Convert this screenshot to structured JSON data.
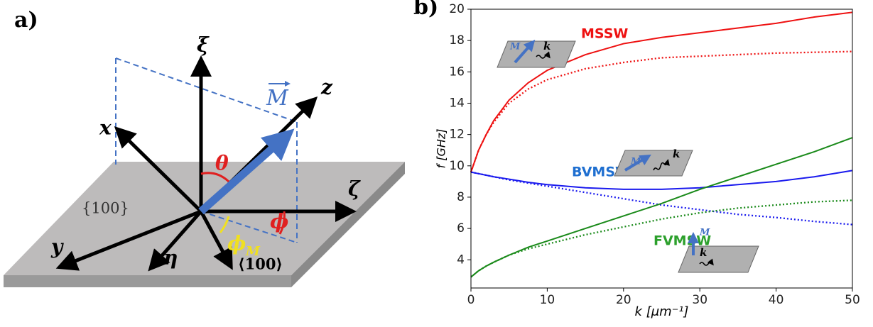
{
  "panel_labels": [
    "a)",
    "b)"
  ],
  "diagram": {
    "xi": "ξ",
    "x": "x",
    "z": "z",
    "M": "M",
    "theta": "θ",
    "zeta": "ζ",
    "plane": "{100}",
    "phi": "ϕ",
    "phi_M": "ϕ",
    "phi_M_sub": "M",
    "y": "y",
    "eta": "η",
    "direction": "⟨100⟩",
    "k": "k"
  },
  "chart_data": {
    "type": "line",
    "x_label": "k [μm⁻¹]",
    "y_label": "f [GHz]",
    "x": [
      0,
      1,
      2,
      3,
      5,
      7.5,
      10,
      15,
      20,
      25,
      30,
      35,
      40,
      45,
      50
    ],
    "series": [
      {
        "color": "#ee1111",
        "style": "solid",
        "values": [
          9.6,
          11,
          12,
          12.9,
          14.2,
          15.3,
          16.1,
          17.1,
          17.8,
          18.2,
          18.5,
          18.8,
          19.1,
          19.5,
          19.8
        ]
      },
      {
        "color": "#ee1111",
        "style": "dotted",
        "values": [
          9.6,
          11,
          12,
          12.8,
          14,
          14.9,
          15.5,
          16.2,
          16.6,
          16.9,
          17.0,
          17.1,
          17.2,
          17.25,
          17.3
        ]
      },
      {
        "color": "#1a1aee",
        "style": "solid",
        "values": [
          9.6,
          9.5,
          9.4,
          9.3,
          9.15,
          8.95,
          8.8,
          8.6,
          8.5,
          8.5,
          8.6,
          8.8,
          9.0,
          9.3,
          9.7
        ]
      },
      {
        "color": "#1a1aee",
        "style": "dotted",
        "values": [
          9.6,
          9.5,
          9.4,
          9.3,
          9.1,
          8.9,
          8.7,
          8.3,
          7.9,
          7.5,
          7.2,
          6.9,
          6.7,
          6.45,
          6.25
        ]
      },
      {
        "color": "#1a8a1a",
        "style": "solid",
        "values": [
          2.9,
          3.3,
          3.6,
          3.85,
          4.3,
          4.8,
          5.2,
          6.0,
          6.8,
          7.6,
          8.5,
          9.3,
          10.1,
          10.9,
          11.8
        ]
      },
      {
        "color": "#1a8a1a",
        "style": "dotted",
        "values": [
          2.9,
          3.3,
          3.6,
          3.85,
          4.3,
          4.7,
          5.0,
          5.6,
          6.1,
          6.6,
          7.0,
          7.3,
          7.5,
          7.7,
          7.8
        ]
      }
    ],
    "annotations": [
      {
        "text": "MSSW",
        "color": "#ee1111"
      },
      {
        "text": "BVMSW",
        "color": "#1f6fd0"
      },
      {
        "text": "FVMSW",
        "color": "#2ca02c"
      }
    ],
    "xlim": [
      0,
      50
    ],
    "xticks": [
      0,
      10,
      20,
      30,
      40,
      50
    ],
    "ylim": [
      2.2,
      20
    ],
    "yticks": [
      4,
      6,
      8,
      10,
      12,
      14,
      16,
      18,
      20
    ]
  }
}
